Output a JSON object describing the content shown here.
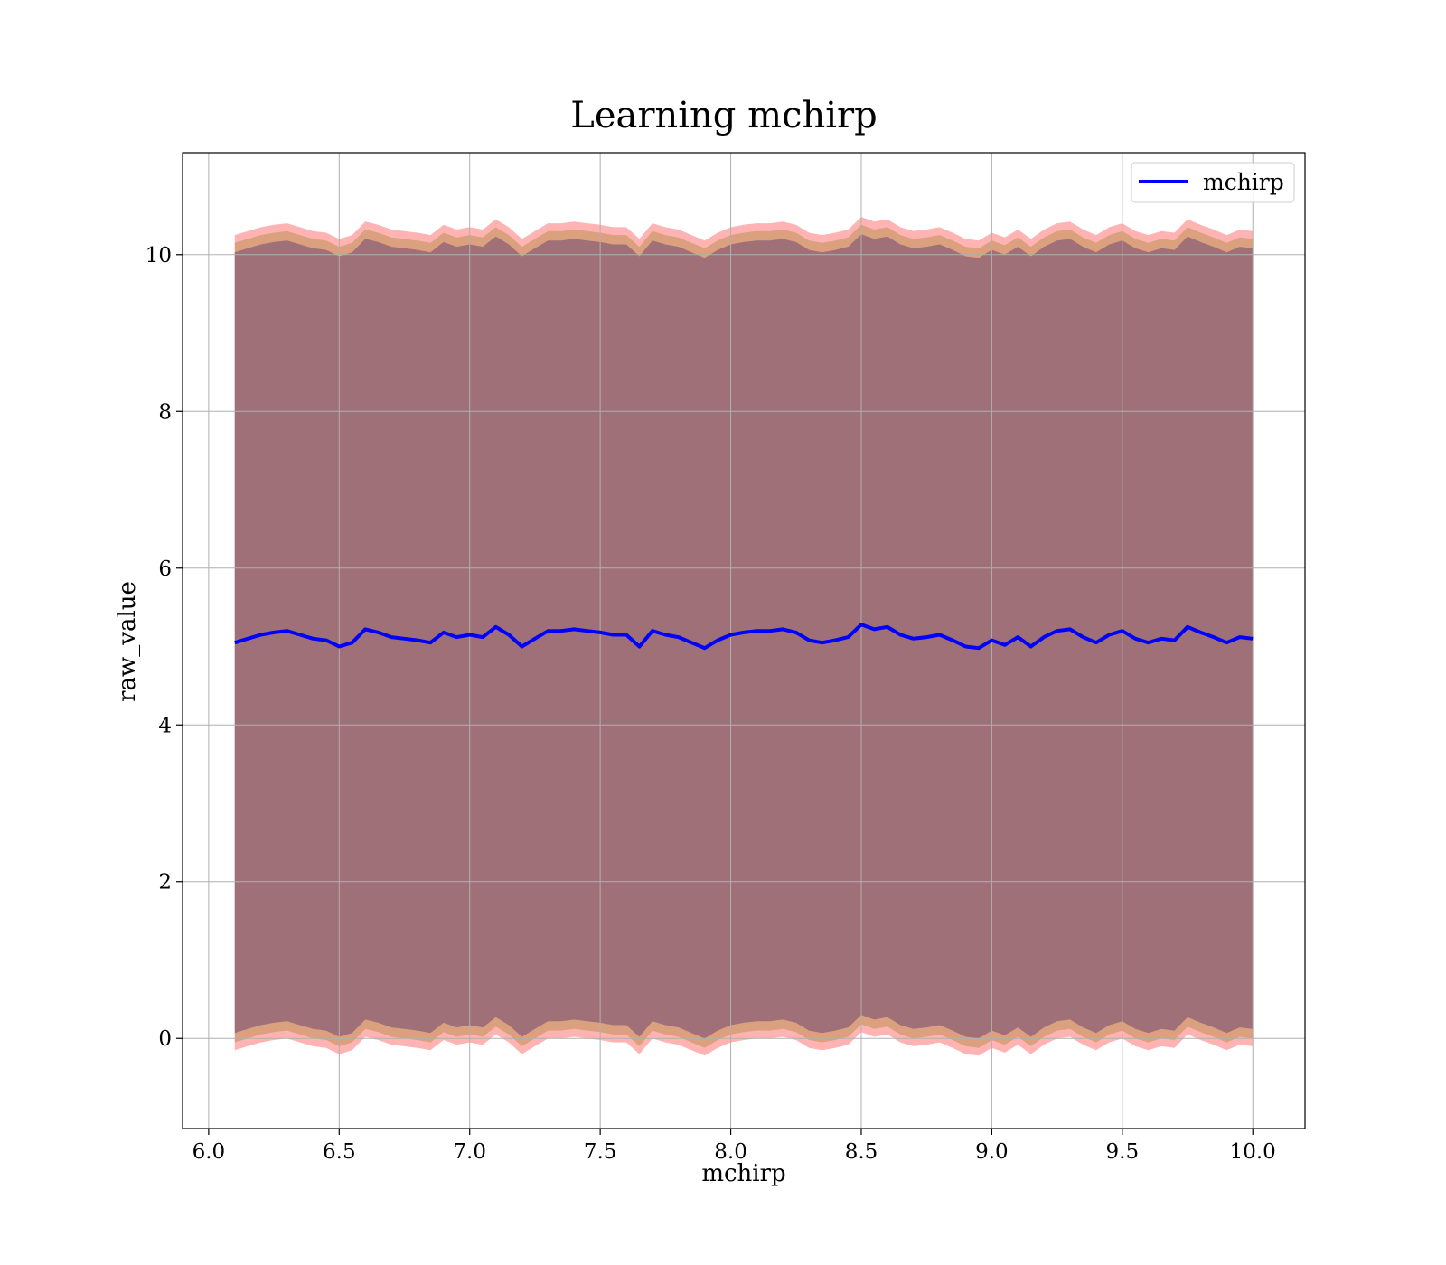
{
  "chart_data": {
    "type": "area",
    "title": "Learning mchirp",
    "xlabel": "mchirp",
    "ylabel": "raw_value",
    "xlim": [
      5.9,
      10.2
    ],
    "ylim": [
      -1.15,
      11.3
    ],
    "x_ticks": [
      6.0,
      6.5,
      7.0,
      7.5,
      8.0,
      8.5,
      9.0,
      9.5,
      10.0
    ],
    "x_tick_labels": [
      "6.0",
      "6.5",
      "7.0",
      "7.5",
      "8.0",
      "8.5",
      "9.0",
      "9.5",
      "10.0"
    ],
    "y_ticks": [
      0,
      2,
      4,
      6,
      8,
      10
    ],
    "y_tick_labels": [
      "0",
      "2",
      "4",
      "6",
      "8",
      "10"
    ],
    "grid": true,
    "legend": {
      "position": "top-right",
      "entries": [
        "mchirp"
      ]
    },
    "x": [
      6.1,
      6.15,
      6.2,
      6.25,
      6.3,
      6.35,
      6.4,
      6.45,
      6.5,
      6.55,
      6.6,
      6.65,
      6.7,
      6.75,
      6.8,
      6.85,
      6.9,
      6.95,
      7.0,
      7.05,
      7.1,
      7.15,
      7.2,
      7.25,
      7.3,
      7.35,
      7.4,
      7.45,
      7.5,
      7.55,
      7.6,
      7.65,
      7.7,
      7.75,
      7.8,
      7.85,
      7.9,
      7.95,
      8.0,
      8.05,
      8.1,
      8.15,
      8.2,
      8.25,
      8.3,
      8.35,
      8.4,
      8.45,
      8.5,
      8.55,
      8.6,
      8.65,
      8.7,
      8.75,
      8.8,
      8.85,
      8.9,
      8.95,
      9.0,
      9.05,
      9.1,
      9.15,
      9.2,
      9.25,
      9.3,
      9.35,
      9.4,
      9.45,
      9.5,
      9.55,
      9.6,
      9.65,
      9.7,
      9.75,
      9.8,
      9.85,
      9.9,
      9.95,
      10.0
    ],
    "series": [
      {
        "name": "mchirp",
        "color": "#0000ff",
        "values": [
          5.05,
          5.1,
          5.15,
          5.18,
          5.2,
          5.15,
          5.1,
          5.08,
          5.0,
          5.05,
          5.22,
          5.18,
          5.12,
          5.1,
          5.08,
          5.05,
          5.18,
          5.12,
          5.15,
          5.12,
          5.25,
          5.15,
          5.0,
          5.1,
          5.2,
          5.2,
          5.22,
          5.2,
          5.18,
          5.15,
          5.15,
          5.0,
          5.2,
          5.15,
          5.12,
          5.05,
          4.98,
          5.08,
          5.15,
          5.18,
          5.2,
          5.2,
          5.22,
          5.18,
          5.08,
          5.05,
          5.08,
          5.12,
          5.28,
          5.22,
          5.25,
          5.15,
          5.1,
          5.12,
          5.15,
          5.08,
          5.0,
          4.98,
          5.08,
          5.02,
          5.12,
          5.0,
          5.12,
          5.2,
          5.22,
          5.12,
          5.05,
          5.15,
          5.2,
          5.1,
          5.05,
          5.1,
          5.08,
          5.25,
          5.18,
          5.12,
          5.05,
          5.12,
          5.1
        ]
      }
    ],
    "bands": [
      {
        "color": "#ff8080",
        "opacity": 0.6,
        "offset": 5.2
      },
      {
        "color": "#cc9966",
        "opacity": 0.7,
        "offset": 5.1
      },
      {
        "color": "#a07078",
        "opacity": 1.0,
        "offset": 4.98
      }
    ]
  }
}
